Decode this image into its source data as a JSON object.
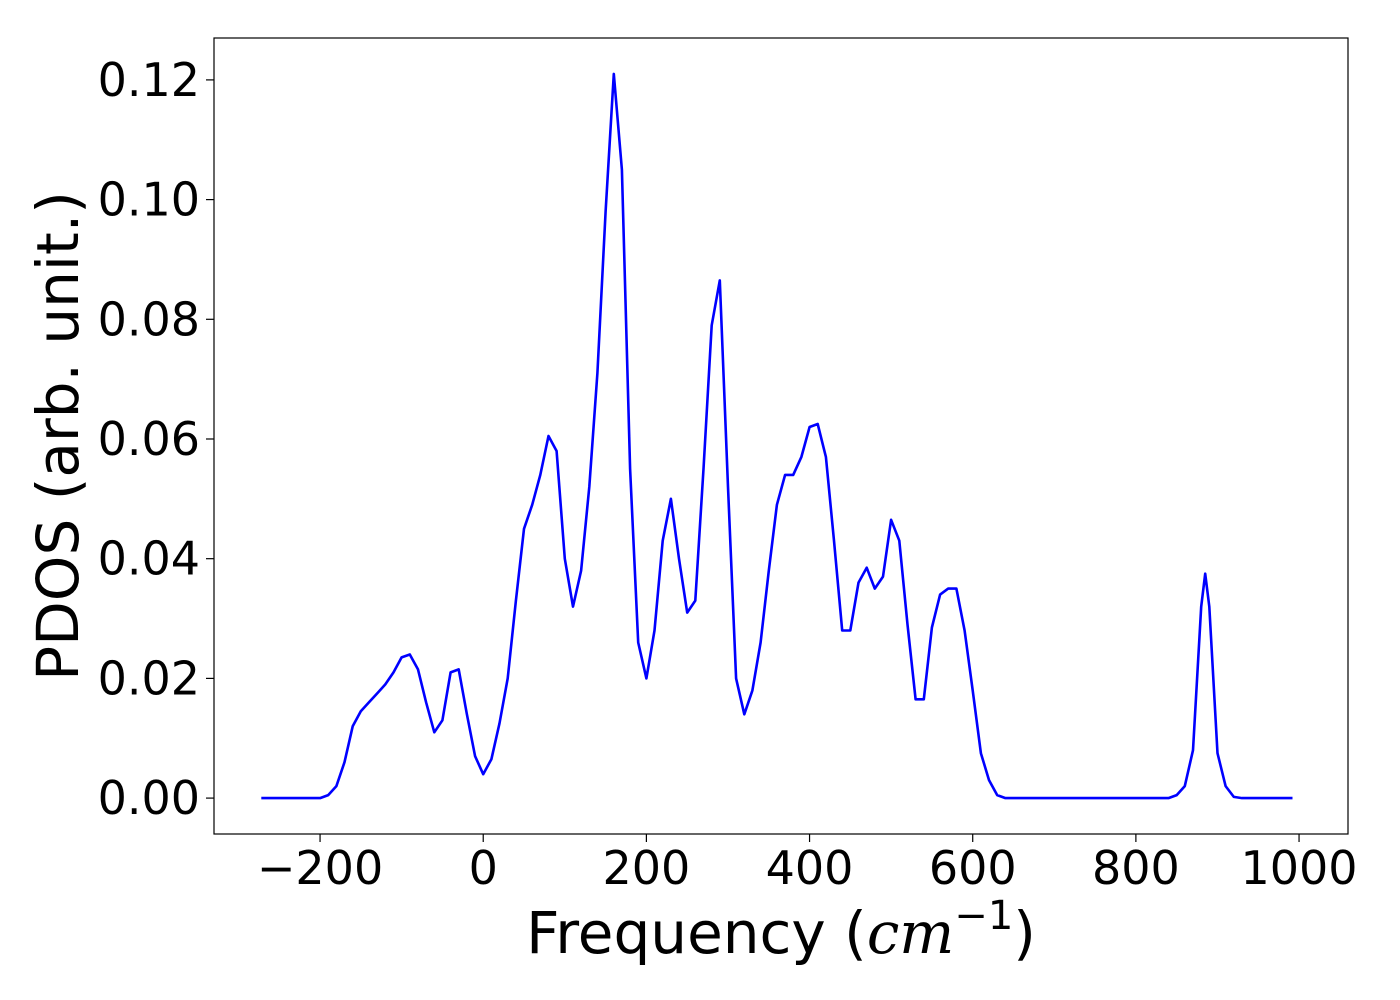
{
  "chart_data": {
    "type": "line",
    "xlabel": "Frequency",
    "xlabel_unit": {
      "open": " (",
      "base": "cm",
      "sup": "−1",
      "close": ")"
    },
    "ylabel": "PDOS (arb. unit.)",
    "xlim": [
      -330,
      1060
    ],
    "ylim": [
      -0.006,
      0.127
    ],
    "x_ticks": [
      -200,
      0,
      200,
      400,
      600,
      800,
      1000
    ],
    "x_tick_labels": [
      "−200",
      "0",
      "200",
      "400",
      "600",
      "800",
      "1000"
    ],
    "y_ticks": [
      0.0,
      0.02,
      0.04,
      0.06,
      0.08,
      0.1,
      0.12
    ],
    "y_tick_labels": [
      "0.00",
      "0.02",
      "0.04",
      "0.06",
      "0.08",
      "0.10",
      "0.12"
    ],
    "grid": false,
    "legend": "none",
    "series": [
      {
        "color": "#0000ff",
        "x": [
          -272,
          -200,
          -190,
          -180,
          -170,
          -160,
          -150,
          -140,
          -130,
          -120,
          -110,
          -100,
          -90,
          -80,
          -70,
          -60,
          -50,
          -40,
          -30,
          -20,
          -10,
          0,
          10,
          20,
          30,
          40,
          50,
          60,
          70,
          80,
          90,
          100,
          110,
          120,
          130,
          140,
          150,
          160,
          170,
          180,
          190,
          200,
          210,
          220,
          230,
          240,
          250,
          260,
          270,
          280,
          290,
          300,
          310,
          320,
          330,
          340,
          350,
          360,
          370,
          380,
          390,
          400,
          410,
          420,
          430,
          440,
          450,
          460,
          470,
          480,
          490,
          500,
          510,
          520,
          530,
          540,
          550,
          560,
          570,
          580,
          590,
          600,
          610,
          620,
          630,
          640,
          650,
          660,
          680,
          700,
          750,
          800,
          840,
          850,
          860,
          870,
          880,
          885,
          890,
          900,
          910,
          920,
          930,
          950,
          992
        ],
        "y": [
          0.0,
          0.0,
          0.0005,
          0.002,
          0.006,
          0.012,
          0.0145,
          0.016,
          0.0175,
          0.019,
          0.021,
          0.0235,
          0.024,
          0.0215,
          0.016,
          0.011,
          0.013,
          0.021,
          0.0215,
          0.014,
          0.007,
          0.004,
          0.0065,
          0.0125,
          0.02,
          0.033,
          0.045,
          0.049,
          0.054,
          0.0605,
          0.058,
          0.04,
          0.032,
          0.038,
          0.052,
          0.071,
          0.098,
          0.121,
          0.105,
          0.055,
          0.026,
          0.02,
          0.028,
          0.043,
          0.05,
          0.04,
          0.031,
          0.033,
          0.055,
          0.079,
          0.0865,
          0.052,
          0.02,
          0.014,
          0.018,
          0.026,
          0.038,
          0.049,
          0.054,
          0.054,
          0.057,
          0.062,
          0.0625,
          0.057,
          0.043,
          0.028,
          0.028,
          0.036,
          0.0385,
          0.035,
          0.037,
          0.0465,
          0.043,
          0.029,
          0.0165,
          0.0165,
          0.0285,
          0.034,
          0.035,
          0.035,
          0.028,
          0.018,
          0.0075,
          0.003,
          0.0005,
          0.0,
          0.0,
          0.0,
          0.0,
          0.0,
          0.0,
          0.0,
          0.0,
          0.0005,
          0.002,
          0.008,
          0.032,
          0.0375,
          0.032,
          0.0075,
          0.002,
          0.0002,
          0.0,
          0.0,
          0.0
        ]
      }
    ]
  }
}
